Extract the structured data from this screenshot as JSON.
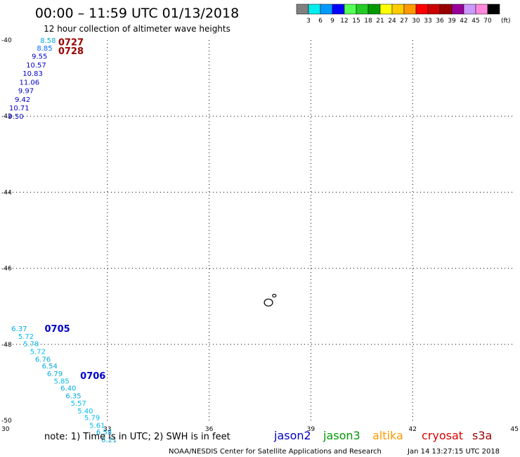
{
  "title": "00:00 – 11:59 UTC 01/13/2018",
  "subtitle": "12 hour collection of altimeter wave heights",
  "colorbar": {
    "colors": [
      "#808080",
      "#00eeee",
      "#0099ff",
      "#0000ff",
      "#55ff55",
      "#22cc22",
      "#009900",
      "#ffff00",
      "#ffcc00",
      "#ff9900",
      "#ff0000",
      "#cc0000",
      "#990000",
      "#990099",
      "#cc99ff",
      "#ff88dd",
      "#000000"
    ],
    "labels": [
      "3",
      "6",
      "9",
      "12",
      "15",
      "18",
      "21",
      "24",
      "27",
      "30",
      "33",
      "36",
      "39",
      "42",
      "45",
      "70"
    ],
    "unit": "(ft)"
  },
  "chart_data": {
    "type": "scatter",
    "xlim": [
      30,
      45
    ],
    "ylim": [
      -50,
      -40
    ],
    "x_ticks": [
      "30",
      "33",
      "36",
      "39",
      "42",
      "45"
    ],
    "y_ticks": [
      "-40",
      "-42",
      "-44",
      "-46",
      "-48",
      "-50"
    ],
    "grid": true,
    "tracks": [
      {
        "time_labels": [
          {
            "text": "0727",
            "lon": 31.55,
            "lat": -40.05,
            "color": "#990000"
          },
          {
            "text": "0728",
            "lon": 31.55,
            "lat": -40.28,
            "color": "#990000"
          }
        ],
        "points": [
          {
            "v": "8.58",
            "lon": 31.25,
            "lat": -40.0,
            "color": "#00aadd"
          },
          {
            "v": "8.85",
            "lon": 31.15,
            "lat": -40.2,
            "color": "#0066ff"
          },
          {
            "v": "9.55",
            "lon": 31.0,
            "lat": -40.42,
            "color": "#0000cc"
          },
          {
            "v": "10.57",
            "lon": 30.9,
            "lat": -40.65,
            "color": "#0000cc"
          },
          {
            "v": "10.83",
            "lon": 30.8,
            "lat": -40.87,
            "color": "#0000cc"
          },
          {
            "v": "11.06",
            "lon": 30.7,
            "lat": -41.1,
            "color": "#0000cc"
          },
          {
            "v": "9.97",
            "lon": 30.6,
            "lat": -41.32,
            "color": "#0000cc"
          },
          {
            "v": "9.42",
            "lon": 30.5,
            "lat": -41.55,
            "color": "#0000cc"
          },
          {
            "v": "10.71",
            "lon": 30.4,
            "lat": -41.77,
            "color": "#0000cc"
          },
          {
            "v": "9.50",
            "lon": 30.3,
            "lat": -42.0,
            "color": "#0000cc"
          }
        ]
      },
      {
        "time_labels": [
          {
            "text": "0705",
            "lon": 31.15,
            "lat": -47.58,
            "color": "#0000cc"
          },
          {
            "text": "0706",
            "lon": 32.2,
            "lat": -48.82,
            "color": "#0000cc"
          }
        ],
        "points": [
          {
            "v": "6.37",
            "lon": 30.4,
            "lat": -47.58,
            "color": "#00aadd"
          },
          {
            "v": "5.72",
            "lon": 30.6,
            "lat": -47.78,
            "color": "#00bbee"
          },
          {
            "v": "5.78",
            "lon": 30.75,
            "lat": -47.98,
            "color": "#00bbee"
          },
          {
            "v": "5.72",
            "lon": 30.95,
            "lat": -48.18,
            "color": "#00bbee"
          },
          {
            "v": "6.76",
            "lon": 31.1,
            "lat": -48.38,
            "color": "#00aadd"
          },
          {
            "v": "6.54",
            "lon": 31.3,
            "lat": -48.56,
            "color": "#00aadd"
          },
          {
            "v": "6.79",
            "lon": 31.45,
            "lat": -48.76,
            "color": "#00aadd"
          },
          {
            "v": "5.85",
            "lon": 31.65,
            "lat": -48.96,
            "color": "#00bbee"
          },
          {
            "v": "6.40",
            "lon": 31.85,
            "lat": -49.14,
            "color": "#00aadd"
          },
          {
            "v": "6.35",
            "lon": 32.0,
            "lat": -49.34,
            "color": "#00aadd"
          },
          {
            "v": "5.57",
            "lon": 32.15,
            "lat": -49.54,
            "color": "#00bbee"
          },
          {
            "v": "5.40",
            "lon": 32.35,
            "lat": -49.74,
            "color": "#00bbee"
          },
          {
            "v": "5.79",
            "lon": 32.55,
            "lat": -49.92,
            "color": "#00bbee"
          },
          {
            "v": "5.61",
            "lon": 32.7,
            "lat": -50.12,
            "color": "#00bbee"
          },
          {
            "v": "6.58",
            "lon": 32.9,
            "lat": -50.3,
            "color": "#00aadd"
          },
          {
            "v": "6.21",
            "lon": 33.05,
            "lat": -50.5,
            "color": "#00aadd"
          }
        ]
      }
    ],
    "islands": [
      {
        "lon": 37.75,
        "lat": -46.9
      },
      {
        "lon": 37.92,
        "lat": -46.72
      }
    ]
  },
  "footer": {
    "note": "note:  1) Time is in UTC;  2) SWH is in feet",
    "satellites": [
      {
        "name": "jason2",
        "color": "#0000cc"
      },
      {
        "name": "jason3",
        "color": "#009900"
      },
      {
        "name": "altika",
        "color": "#ff9900"
      },
      {
        "name": "cryosat",
        "color": "#dd0000"
      },
      {
        "name": "s3a",
        "color": "#990000"
      }
    ],
    "credit": "NOAA/NESDIS Center for Satellite Applications and Research",
    "timestamp": "Jan 14 13:27:15 UTC 2018"
  }
}
